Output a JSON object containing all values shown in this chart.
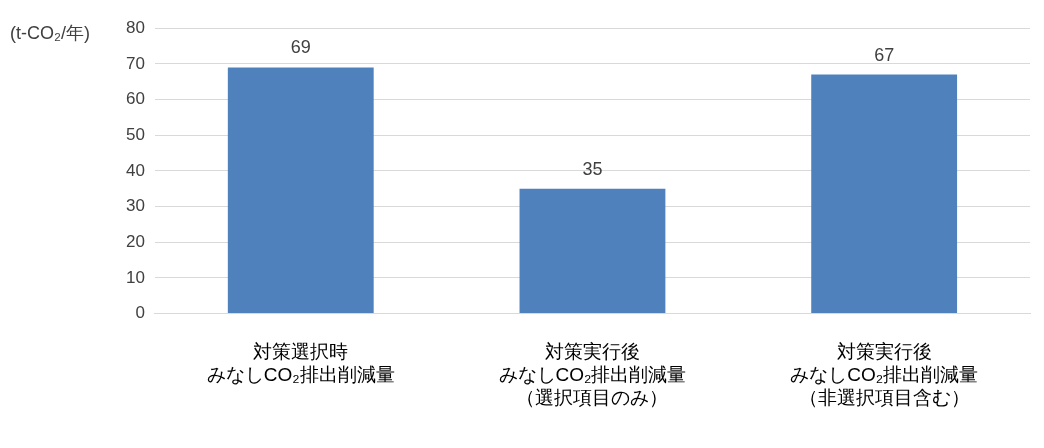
{
  "chart_data": {
    "type": "bar",
    "ylabel": "(t-CO₂/年)",
    "categories": [
      "対策選択時みなしCO₂排出削減量",
      "対策実行後みなしCO₂排出削減量（選択項目のみ）",
      "対策実行後みなしCO₂排出削減量（非選択項目含む）"
    ],
    "values": [
      69,
      35,
      67
    ],
    "color": "#4f81bd",
    "ylim": [
      0,
      80
    ],
    "yticks": [
      0,
      10,
      20,
      30,
      40,
      50,
      60,
      70,
      80
    ],
    "grid": "y",
    "data_labels": true
  }
}
